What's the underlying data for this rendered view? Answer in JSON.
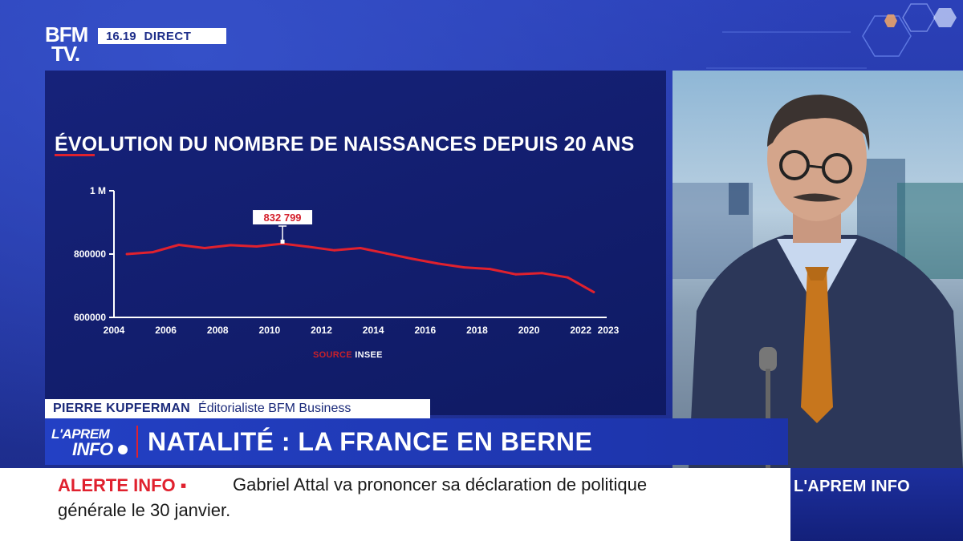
{
  "channel": {
    "logo_line1": "BFM",
    "logo_line2": "TV.",
    "time": "16.19",
    "live_label": "DIRECT"
  },
  "chart_data": {
    "type": "line",
    "title": "ÉVOLUTION DU NOMBRE DE NAISSANCES DEPUIS 20 ANS",
    "x_ticks": [
      "2004",
      "2006",
      "2008",
      "2010",
      "2012",
      "2014",
      "2016",
      "2018",
      "2020",
      "2022",
      "2023"
    ],
    "y_ticks": [
      "1 M",
      "800000",
      "600000"
    ],
    "ylim": [
      600000,
      1000000
    ],
    "xlim": [
      2004,
      2023
    ],
    "series": [
      {
        "color": "#e0212e",
        "points": [
          [
            2004.5,
            800000
          ],
          [
            2005.5,
            806000
          ],
          [
            2006.5,
            829000
          ],
          [
            2007.5,
            819000
          ],
          [
            2008.5,
            828000
          ],
          [
            2009.5,
            824000
          ],
          [
            2010.5,
            832799
          ],
          [
            2011.5,
            823000
          ],
          [
            2012.5,
            812000
          ],
          [
            2013.5,
            819000
          ],
          [
            2014.5,
            802000
          ],
          [
            2015.5,
            785000
          ],
          [
            2016.5,
            770000
          ],
          [
            2017.5,
            758000
          ],
          [
            2018.5,
            753000
          ],
          [
            2019.5,
            736000
          ],
          [
            2020.5,
            740000
          ],
          [
            2021.5,
            726000
          ],
          [
            2022.5,
            680000
          ]
        ]
      }
    ],
    "annotation": {
      "x": 2010.5,
      "y": 832799,
      "label": "832 799"
    },
    "source_label": "SOURCE",
    "source_name": "INSEE",
    "grid": false
  },
  "lower_third": {
    "name": "PIERRE KUPFERMAN",
    "role": "Éditorialiste BFM Business",
    "show_line1": "L'APREM",
    "show_line2": "INFO",
    "headline": "NATALITÉ : LA FRANCE EN BERNE"
  },
  "ticker": {
    "label": "ALERTE INFO ▪",
    "text_line1": "Gabriel Attal va prononcer sa déclaration de politique",
    "text_line2": "générale le 30 janvier."
  },
  "corner_brand": "L'APREM INFO"
}
